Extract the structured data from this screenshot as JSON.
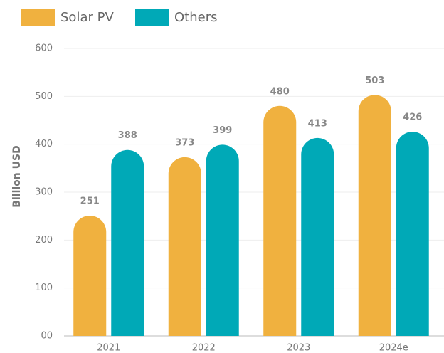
{
  "chart_data": {
    "type": "bar",
    "y_label": "Billion USD",
    "categories": [
      "2021",
      "2022",
      "2023",
      "2024e"
    ],
    "series": [
      {
        "name": "Solar PV",
        "color": "#f0b13f",
        "values": [
          251,
          373,
          480,
          503
        ]
      },
      {
        "name": "Others",
        "color": "#00a9b7",
        "values": [
          388,
          399,
          413,
          426
        ]
      }
    ],
    "ylim": [
      0,
      600
    ],
    "yticks": [
      {
        "value": 0,
        "label": "00"
      },
      100,
      200,
      300,
      400,
      500,
      600
    ],
    "grid": true,
    "legend": "top-left"
  }
}
